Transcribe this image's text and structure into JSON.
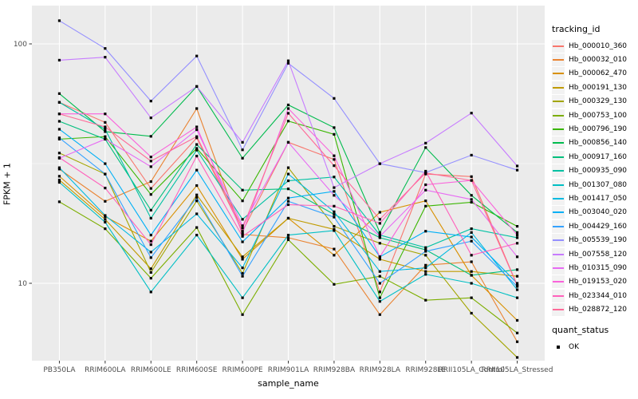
{
  "figure": {
    "background": "#FFFFFF",
    "panel_background": "#EBEBEB",
    "grid_color": "#FFFFFF",
    "tick_color": "#333333",
    "axis_text_color": "#4D4D4D",
    "point_color": "#000000"
  },
  "x_axis": {
    "title": "sample_name",
    "categories": [
      "PB350LA",
      "RRIM600LA",
      "RRIM600LE",
      "RRIM600SE",
      "RRIM600PE",
      "RRIM901LA",
      "RRIM928BA",
      "RRIM928LA",
      "RRIM928LE",
      "RRII105LA_Control",
      "RRII105LA_Stressed"
    ]
  },
  "y_axis": {
    "title": "FPKM + 1",
    "scale": "log10",
    "major_breaks": [
      100,
      10
    ],
    "tick_labels": [
      "100",
      "10"
    ],
    "minor_breaks": [
      31.62
    ]
  },
  "legend": {
    "tracking_title": "tracking_id",
    "quant_title": "quant_status",
    "quant_items": [
      {
        "label": "OK",
        "symbol": "filled-square",
        "color": "#000000"
      }
    ]
  },
  "chart_data": {
    "type": "line",
    "title": "",
    "xlabel": "sample_name",
    "ylabel": "FPKM + 1",
    "y_scale": "log10",
    "ylim": [
      4.6,
      141
    ],
    "grid": true,
    "legend_position": "right",
    "point_marker": {
      "shape": "filled-square",
      "color": "#000000",
      "status_label": "OK"
    },
    "categories": [
      "PB350LA",
      "RRIM600LA",
      "RRIM600LE",
      "RRIM600SE",
      "RRIM600PE",
      "RRIM901LA",
      "RRIM928BA",
      "RRIM928LA",
      "RRIM928LE",
      "RRII105LA_Control",
      "RRII105LA_Stressed"
    ],
    "series": [
      {
        "name": "Hb_000010_360",
        "color": "#F8766D",
        "values": [
          57,
          47,
          24.9,
          40.5,
          16.5,
          38.8,
          32.9,
          9.2,
          28.6,
          27.9,
          9.8
        ]
      },
      {
        "name": "Hb_000032_010",
        "color": "#EA8331",
        "values": [
          30,
          22,
          26.6,
          53.7,
          16,
          15.5,
          13.9,
          7.4,
          11.9,
          12.3,
          5.7
        ]
      },
      {
        "name": "Hb_000062_470",
        "color": "#D89000",
        "values": [
          28,
          19,
          15,
          25.6,
          12.6,
          18.7,
          13.1,
          19.8,
          22.1,
          10.8,
          7
        ]
      },
      {
        "name": "Hb_000191_130",
        "color": "#C09B00",
        "values": [
          27,
          18.5,
          11.5,
          23.4,
          12.9,
          18.7,
          16.8,
          12.6,
          11.2,
          11.2,
          10.7
        ]
      },
      {
        "name": "Hb_000329_130",
        "color": "#A3A500",
        "values": [
          35,
          28.6,
          11.1,
          22.1,
          11,
          30.4,
          17.3,
          14.7,
          13.1,
          7.5,
          4.9
        ]
      },
      {
        "name": "Hb_000753_100",
        "color": "#7CAE00",
        "values": [
          21.9,
          16.9,
          10.5,
          17.1,
          7.4,
          15.2,
          9.9,
          10.7,
          8.5,
          8.7,
          6.2
        ]
      },
      {
        "name": "Hb_000796_190",
        "color": "#39B600",
        "values": [
          40,
          41,
          23.5,
          36.6,
          22.1,
          47.6,
          41.9,
          8.7,
          21,
          21.8,
          17.3
        ]
      },
      {
        "name": "Hb_000856_140",
        "color": "#00BB4E",
        "values": [
          62,
          43,
          41.1,
          66.4,
          33.3,
          55.6,
          44.7,
          16.3,
          36.9,
          23.3,
          16.3
        ]
      },
      {
        "name": "Hb_000917_160",
        "color": "#00BF7D",
        "values": [
          47.5,
          40,
          20.2,
          38,
          24.5,
          24.8,
          19.4,
          15.5,
          13.8,
          10.8,
          11.4
        ]
      },
      {
        "name": "Hb_000935_090",
        "color": "#00C1A3",
        "values": [
          57,
          44,
          18.7,
          36,
          18.5,
          26.8,
          27.8,
          15.9,
          14.1,
          16.9,
          15.5
        ]
      },
      {
        "name": "Hb_001307_080",
        "color": "#00BFC4",
        "values": [
          26.4,
          18,
          9.2,
          15.9,
          8.7,
          15.9,
          16.6,
          8.4,
          10.9,
          10,
          8.7
        ]
      },
      {
        "name": "Hb_001417_050",
        "color": "#00BAE0",
        "values": [
          30.4,
          19.2,
          13.5,
          19.5,
          11.6,
          28.6,
          19.9,
          11.2,
          11.6,
          16.3,
          9.4
        ]
      },
      {
        "name": "Hb_003040_020",
        "color": "#00B0F6",
        "values": [
          44,
          31.6,
          15.9,
          29.7,
          14.9,
          22.7,
          24.2,
          12.9,
          16.5,
          15.6,
          10
        ]
      },
      {
        "name": "Hb_004429_160",
        "color": "#35A2FF",
        "values": [
          40.5,
          28.6,
          12.8,
          22.8,
          10.7,
          22,
          18.9,
          10,
          13.6,
          15,
          9.7
        ]
      },
      {
        "name": "Hb_005539_190",
        "color": "#9590FF",
        "values": [
          125,
          95.7,
          57.7,
          89,
          36.1,
          83,
          59.2,
          31.6,
          29,
          34.3,
          29.7
        ]
      },
      {
        "name": "Hb_007558_120",
        "color": "#C77CFF",
        "values": [
          85.5,
          88,
          49.1,
          66.4,
          38.8,
          85,
          25.1,
          31.6,
          38.5,
          51.4,
          30.9
        ]
      },
      {
        "name": "Hb_010315_090",
        "color": "#E76BF3",
        "values": [
          33.3,
          40,
          30.7,
          43.8,
          17.4,
          38.8,
          23.3,
          15.7,
          24.5,
          22.4,
          12.9
        ]
      },
      {
        "name": "Hb_019153_020",
        "color": "#FA62DB",
        "values": [
          51,
          51,
          33.7,
          45,
          16.2,
          53.7,
          34.1,
          12.9,
          25.8,
          26.9,
          15.9
        ]
      },
      {
        "name": "Hb_023344_010",
        "color": "#FF62BC",
        "values": [
          33.5,
          25,
          14.5,
          34,
          15.7,
          21.3,
          21,
          17.8,
          29.4,
          13.1,
          14.7
        ]
      },
      {
        "name": "Hb_028872_120",
        "color": "#FF6A98",
        "values": [
          51,
          45,
          32.4,
          41,
          17,
          51.3,
          31,
          18.5,
          28.9,
          26.9,
          9.8
        ]
      }
    ]
  }
}
